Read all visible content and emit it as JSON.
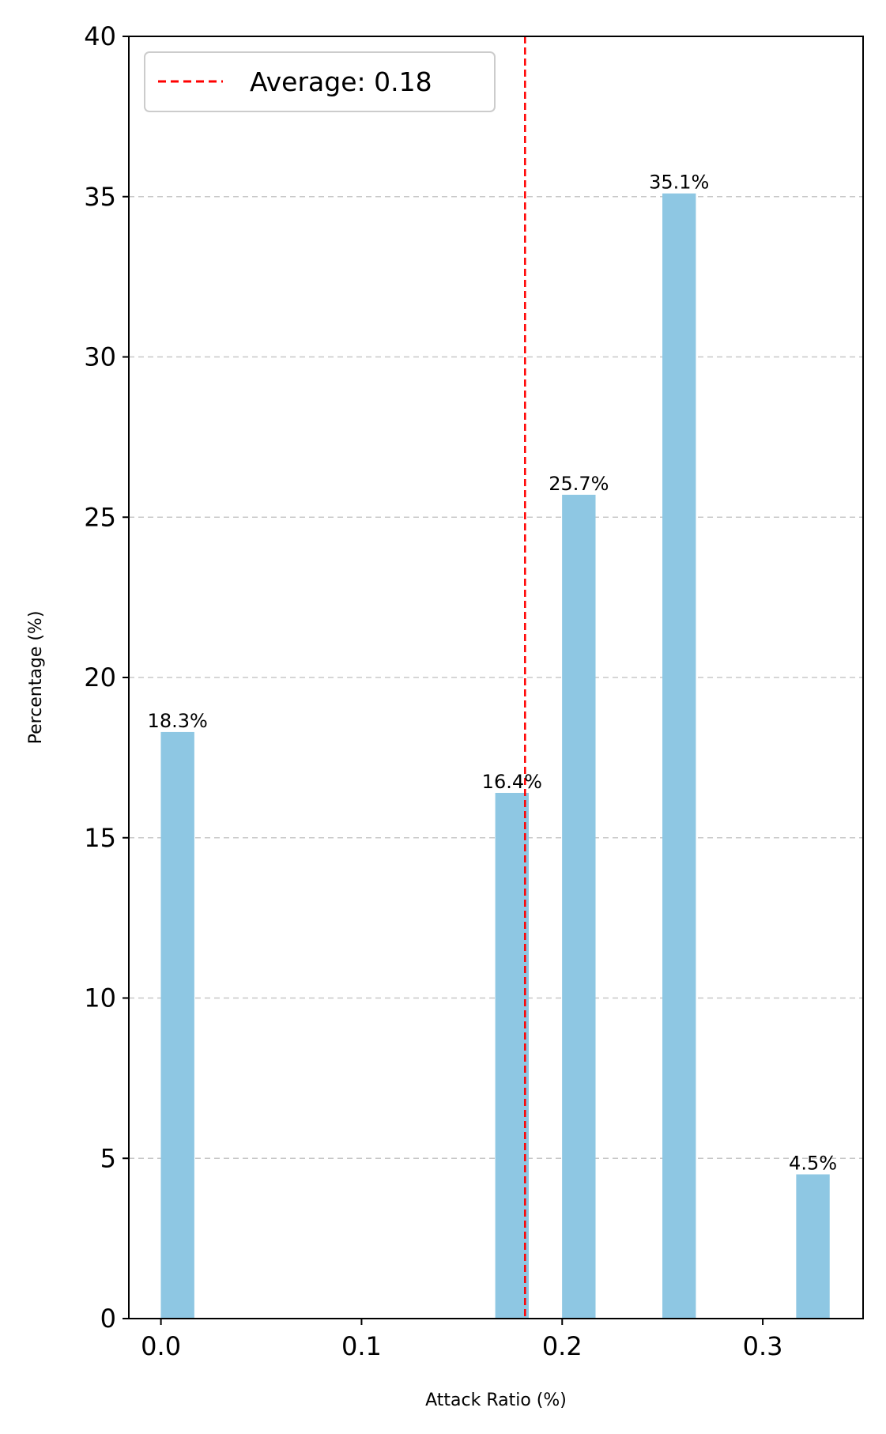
{
  "chart_data": {
    "type": "bar",
    "title": "",
    "xlabel": "Attack Ratio (%)",
    "ylabel": "Percentage (%)",
    "xlim": [
      -0.016,
      0.35
    ],
    "ylim": [
      0,
      40
    ],
    "xticks": [
      0.0,
      0.1,
      0.2,
      0.3
    ],
    "xtick_labels": [
      "0.0",
      "0.1",
      "0.2",
      "0.3"
    ],
    "yticks": [
      0,
      5,
      10,
      15,
      20,
      25,
      30,
      35,
      40
    ],
    "ytick_labels": [
      "0",
      "5",
      "10",
      "15",
      "20",
      "25",
      "30",
      "35",
      "40"
    ],
    "bar_width": 0.0167,
    "bars": [
      {
        "x": 0.0083,
        "value": 18.3,
        "label": "18.3%"
      },
      {
        "x": 0.175,
        "value": 16.4,
        "label": "16.4%"
      },
      {
        "x": 0.2083,
        "value": 25.7,
        "label": "25.7%"
      },
      {
        "x": 0.2583,
        "value": 35.1,
        "label": "35.1%"
      },
      {
        "x": 0.325,
        "value": 4.5,
        "label": "4.5%"
      }
    ],
    "bar_color": "#8ec7e3",
    "average_line": {
      "x": 0.1815,
      "label": "Average: 0.18",
      "color": "#ff0000",
      "style": "dashed"
    },
    "grid": "y-dashed",
    "legend_position": "top-left"
  }
}
